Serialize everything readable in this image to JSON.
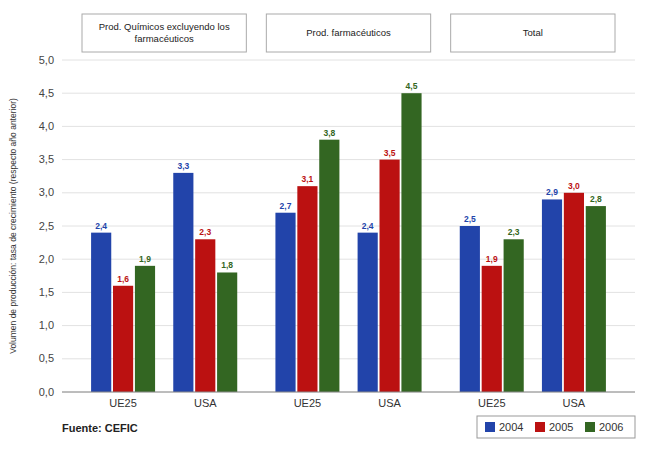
{
  "chart_data": {
    "type": "bar",
    "categories": [
      "UE25",
      "USA",
      "UE25",
      "USA",
      "UE25",
      "USA"
    ],
    "series": [
      {
        "name": "2004",
        "color": "#2244AA",
        "values": [
          2.4,
          3.3,
          2.7,
          2.4,
          2.5,
          2.9
        ],
        "value_labels": [
          "2,4",
          "3,3",
          "2,7",
          "2,4",
          "2,5",
          "2,9"
        ]
      },
      {
        "name": "2005",
        "color": "#BB1111",
        "values": [
          1.6,
          2.3,
          3.1,
          3.5,
          1.9,
          3.0
        ],
        "value_labels": [
          "1,6",
          "2,3",
          "3,1",
          "3,5",
          "1,9",
          "3,0"
        ]
      },
      {
        "name": "2006",
        "color": "#336622",
        "values": [
          1.9,
          1.8,
          3.8,
          4.5,
          2.3,
          2.8
        ],
        "value_labels": [
          "1,9",
          "1,8",
          "3,8",
          "4,5",
          "2,3",
          "2,8"
        ]
      }
    ],
    "annotations": [
      "Prod. Químicos excluyendo los\nfarmacéuticos",
      "Prod. farmacéuticos",
      "Total"
    ],
    "source": "Fuente: CEFIC",
    "y_label": "Volumen de producción: tasa de crecimiento (respecto año anterior)",
    "ylim": [
      0.0,
      5.0
    ],
    "yticks": [
      {
        "value": 0.0,
        "label": "0,0"
      },
      {
        "value": 0.5,
        "label": "0,5"
      },
      {
        "value": 1.0,
        "label": "1,0"
      },
      {
        "value": 1.5,
        "label": "1,5"
      },
      {
        "value": 2.0,
        "label": "2,0"
      },
      {
        "value": 2.5,
        "label": "2,5"
      },
      {
        "value": 3.0,
        "label": "3,0"
      },
      {
        "value": 3.5,
        "label": "3,5"
      },
      {
        "value": 4.0,
        "label": "4,0"
      },
      {
        "value": 4.5,
        "label": "4,5"
      },
      {
        "value": 5.0,
        "label": "5,0"
      }
    ],
    "grid": true,
    "legend": "lower right",
    "data_labels": true
  }
}
